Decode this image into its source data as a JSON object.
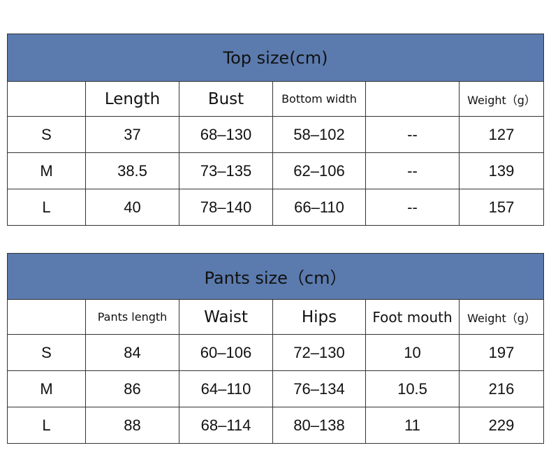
{
  "top_table": {
    "title": "Top size(cm)",
    "headers": [
      "",
      "Length",
      "Bust",
      "Bottom width",
      "",
      "Weight（g）"
    ],
    "rows": [
      [
        "S",
        "37",
        "68–130",
        "58–102",
        "--",
        "127"
      ],
      [
        "M",
        "38.5",
        "73–135",
        "62–106",
        "--",
        "139"
      ],
      [
        "L",
        "40",
        "78–140",
        "66–110",
        "--",
        "157"
      ]
    ]
  },
  "pants_table": {
    "title": "Pants size（cm）",
    "headers": [
      "",
      "Pants length",
      "Waist",
      "Hips",
      "Foot mouth",
      "Weight（g）"
    ],
    "rows": [
      [
        "S",
        "84",
        "60–106",
        "72–130",
        "10",
        "197"
      ],
      [
        "M",
        "86",
        "64–110",
        "76–134",
        "10.5",
        "216"
      ],
      [
        "L",
        "88",
        "68–114",
        "80–138",
        "11",
        "229"
      ]
    ]
  },
  "colors": {
    "header_bg": "#5b7bae"
  }
}
